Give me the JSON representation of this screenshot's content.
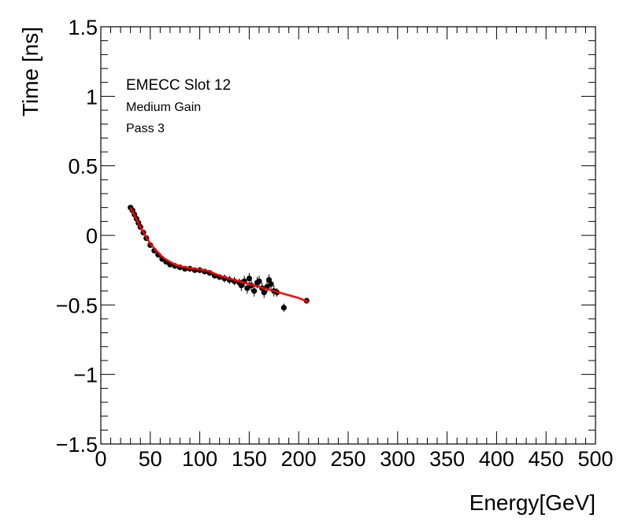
{
  "chart_data": {
    "type": "scatter",
    "xlabel": "Energy[GeV]",
    "ylabel": "Time [ns]",
    "xlim": [
      0,
      500
    ],
    "ylim": [
      -1.5,
      1.5
    ],
    "x_ticks": [
      0,
      50,
      100,
      150,
      200,
      250,
      300,
      350,
      400,
      450,
      500
    ],
    "x_tick_labels": [
      "0",
      "50",
      "100",
      "150",
      "200",
      "250",
      "300",
      "350",
      "400",
      "450",
      "500"
    ],
    "y_ticks": [
      -1.5,
      -1,
      -0.5,
      0,
      0.5,
      1,
      1.5
    ],
    "y_tick_labels": [
      "−1.5",
      "−1",
      "−0.5",
      "0",
      "0.5",
      "1",
      "1.5"
    ],
    "annotations": [
      "EMECC Slot 12",
      "Medium Gain",
      "Pass 3"
    ],
    "grid": false,
    "colors": {
      "points": "#000000",
      "fit": "#ff0000"
    },
    "series": [
      {
        "kind": "points_with_error_bars",
        "x": [
          30,
          32,
          34,
          36,
          38,
          40,
          43,
          46,
          50,
          54,
          58,
          62,
          66,
          70,
          75,
          80,
          85,
          90,
          95,
          100,
          105,
          110,
          115,
          120,
          125,
          130,
          135,
          140,
          142,
          145,
          148,
          150,
          152,
          155,
          158,
          160,
          163,
          165,
          168,
          170,
          172,
          175,
          178,
          185,
          208
        ],
        "y": [
          0.2,
          0.18,
          0.15,
          0.12,
          0.09,
          0.06,
          0.02,
          -0.02,
          -0.07,
          -0.11,
          -0.14,
          -0.17,
          -0.19,
          -0.21,
          -0.22,
          -0.23,
          -0.24,
          -0.24,
          -0.25,
          -0.25,
          -0.26,
          -0.27,
          -0.29,
          -0.3,
          -0.31,
          -0.32,
          -0.33,
          -0.34,
          -0.36,
          -0.33,
          -0.38,
          -0.31,
          -0.36,
          -0.4,
          -0.34,
          -0.33,
          -0.38,
          -0.41,
          -0.37,
          -0.32,
          -0.35,
          -0.4,
          -0.41,
          -0.52,
          -0.47
        ],
        "err": [
          0.02,
          0.02,
          0.02,
          0.02,
          0.02,
          0.02,
          0.02,
          0.02,
          0.02,
          0.02,
          0.02,
          0.02,
          0.02,
          0.02,
          0.02,
          0.02,
          0.02,
          0.02,
          0.02,
          0.02,
          0.02,
          0.02,
          0.02,
          0.02,
          0.03,
          0.03,
          0.03,
          0.03,
          0.04,
          0.04,
          0.04,
          0.04,
          0.04,
          0.04,
          0.04,
          0.04,
          0.04,
          0.04,
          0.04,
          0.04,
          0.04,
          0.04,
          0.03,
          0.03,
          0.02
        ]
      },
      {
        "kind": "fit_line",
        "x": [
          30,
          35,
          40,
          45,
          50,
          55,
          60,
          65,
          70,
          75,
          80,
          85,
          90,
          95,
          100,
          105,
          110,
          120,
          130,
          140,
          150,
          160,
          170,
          180,
          190,
          200,
          210
        ],
        "y": [
          0.2,
          0.13,
          0.06,
          0.0,
          -0.06,
          -0.1,
          -0.14,
          -0.17,
          -0.19,
          -0.21,
          -0.22,
          -0.23,
          -0.235,
          -0.24,
          -0.245,
          -0.25,
          -0.26,
          -0.29,
          -0.31,
          -0.33,
          -0.35,
          -0.37,
          -0.39,
          -0.41,
          -0.43,
          -0.45,
          -0.48
        ]
      }
    ]
  }
}
